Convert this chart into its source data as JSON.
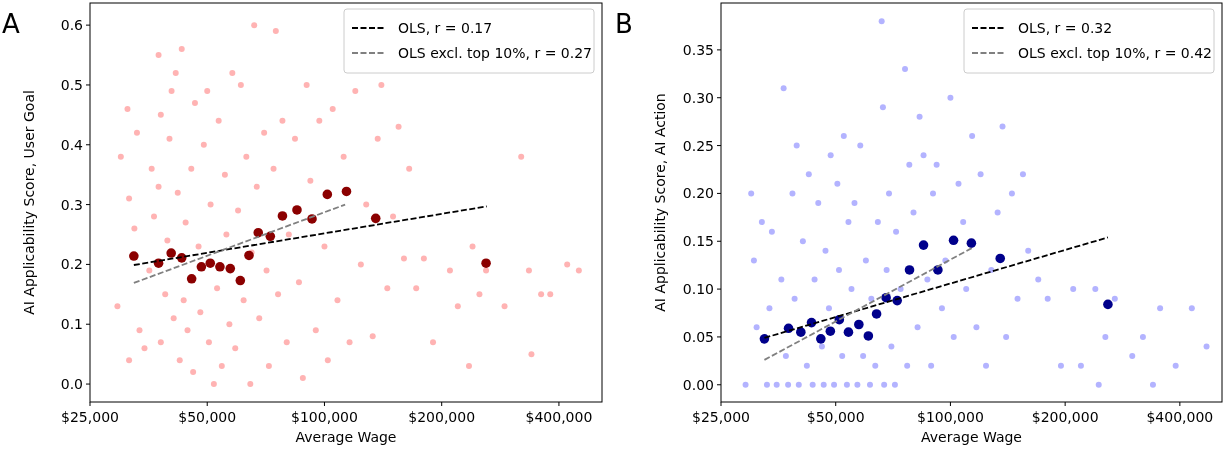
{
  "chart_data": [
    {
      "type": "scatter",
      "title": "A",
      "xlabel": "Average Wage",
      "ylabel": "AI Applicability Score, User Goal",
      "log": "x",
      "legend": "top right",
      "xlim": [
        25000,
        516000
      ],
      "ylim": [
        -0.03,
        0.637
      ],
      "xticks": [
        {
          "value": 25000,
          "label": "$25,000"
        },
        {
          "value": 50000,
          "label": "$50,000"
        },
        {
          "value": 100000,
          "label": "$100,000"
        },
        {
          "value": 200000,
          "label": "$200,000"
        },
        {
          "value": 400000,
          "label": "$400,000"
        }
      ],
      "yticks": [
        {
          "value": 0,
          "label": "0.0"
        },
        0.1,
        0.2,
        0.3,
        0.4,
        0.5,
        0.6
      ],
      "series": [
        {
          "color": "#ffb3b3",
          "marker": "circle",
          "x": [
            29400,
            30000,
            31200,
            31500,
            31500,
            32500,
            33000,
            33500,
            34500,
            35500,
            36000,
            36500,
            37500,
            37500,
            38000,
            38000,
            39000,
            39500,
            40000,
            40500,
            41000,
            41500,
            42000,
            42500,
            43000,
            43500,
            44000,
            44500,
            45500,
            46000,
            46500,
            47500,
            48000,
            49000,
            50000,
            50500,
            51000,
            52000,
            53000,
            53500,
            54500,
            55500,
            56000,
            57000,
            58000,
            59000,
            60000,
            61000,
            62000,
            63000,
            64500,
            65000,
            66000,
            67000,
            68000,
            70000,
            71000,
            72000,
            74000,
            75000,
            76000,
            78000,
            80000,
            81000,
            84000,
            86000,
            88000,
            90000,
            92000,
            95000,
            97000,
            100000,
            102000,
            105000,
            108000,
            112000,
            116000,
            120000,
            124000,
            128000,
            133000,
            137000,
            140000,
            145000,
            150000,
            155000,
            160000,
            165000,
            172000,
            180000,
            190000,
            210000,
            220000,
            235000,
            240000,
            250000,
            260000,
            290000,
            320000,
            335000,
            340000,
            360000,
            380000,
            420000,
            450000
          ],
          "values": [
            0.13,
            0.38,
            0.46,
            0.31,
            0.04,
            0.26,
            0.42,
            0.09,
            0.06,
            0.19,
            0.36,
            0.28,
            0.55,
            0.33,
            0.07,
            0.45,
            0.15,
            0.24,
            0.41,
            0.49,
            0.11,
            0.52,
            0.32,
            0.04,
            0.56,
            0.14,
            0.27,
            0.09,
            0.36,
            0.02,
            0.47,
            0.23,
            0.12,
            0.4,
            0.49,
            0.07,
            0.3,
            0.0,
            0.16,
            0.44,
            0.03,
            0.35,
            0.25,
            0.1,
            0.52,
            0.06,
            0.29,
            0.5,
            0.14,
            0.38,
            0.0,
            0.22,
            0.6,
            0.33,
            0.11,
            0.42,
            0.19,
            0.03,
            0.36,
            0.59,
            0.15,
            0.44,
            0.07,
            0.25,
            0.41,
            0.17,
            0.01,
            0.5,
            0.34,
            0.09,
            0.44,
            0.23,
            0.04,
            0.46,
            0.14,
            0.38,
            0.07,
            0.49,
            0.2,
            0.3,
            0.08,
            0.41,
            0.5,
            0.16,
            0.28,
            0.43,
            0.21,
            0.36,
            0.16,
            0.21,
            0.07,
            0.19,
            0.13,
            0.03,
            0.23,
            0.15,
            0.19,
            0.13,
            0.38,
            0.19,
            0.05,
            0.15,
            0.15,
            0.2,
            0.19
          ]
        },
        {
          "color": "#8b0000",
          "marker": "circle",
          "x": [
            32400,
            37500,
            40400,
            43000,
            45600,
            48300,
            50900,
            53900,
            57300,
            60800,
            64000,
            67600,
            72600,
            78000,
            85000,
            92900,
            101700,
            113900,
            135400,
            260000
          ],
          "values": [
            0.214,
            0.202,
            0.219,
            0.211,
            0.176,
            0.196,
            0.202,
            0.196,
            0.193,
            0.173,
            0.215,
            0.253,
            0.247,
            0.281,
            0.291,
            0.276,
            0.317,
            0.322,
            0.277,
            0.202
          ]
        },
        {
          "type": "line",
          "name": "OLS, r = 0.17",
          "color": "#000000",
          "line_style": "dashed",
          "marker": "none",
          "x": [
            32400,
            261000
          ],
          "values": [
            0.199,
            0.297
          ]
        },
        {
          "type": "line",
          "name": "OLS excl. top 10%, r = 0.27",
          "color": "#808080",
          "line_style": "dashed",
          "marker": "none",
          "x": [
            32400,
            113000
          ],
          "values": [
            0.169,
            0.3
          ]
        }
      ]
    },
    {
      "type": "scatter",
      "title": "B",
      "xlabel": "Average Wage",
      "ylabel": "AI Applicability Score, AI Action",
      "log": "x",
      "legend": "top right",
      "xlim": [
        25000,
        516000
      ],
      "ylim": [
        -0.018,
        0.399
      ],
      "xticks": [
        {
          "value": 25000,
          "label": "$25,000"
        },
        {
          "value": 50000,
          "label": "$50,000"
        },
        {
          "value": 100000,
          "label": "$100,000"
        },
        {
          "value": 200000,
          "label": "$200,000"
        },
        {
          "value": 400000,
          "label": "$400,000"
        }
      ],
      "yticks": [
        {
          "value": 0,
          "label": "0.00"
        },
        0.05,
        {
          "value": 0.1,
          "label": "0.10"
        },
        0.15,
        {
          "value": 0.2,
          "label": "0.20"
        },
        0.25,
        {
          "value": 0.3,
          "label": "0.30"
        },
        0.35
      ],
      "series": [
        {
          "color": "#b3b3ff",
          "marker": "circle",
          "x": [
            29000,
            30000,
            30500,
            31000,
            32000,
            33000,
            33500,
            34000,
            35000,
            36000,
            36500,
            37000,
            37500,
            38500,
            39000,
            39500,
            40000,
            41000,
            42000,
            42500,
            43500,
            44000,
            45000,
            46000,
            46500,
            47000,
            48000,
            48500,
            49500,
            50500,
            51000,
            52000,
            52500,
            53500,
            54000,
            55000,
            56000,
            57000,
            58000,
            59000,
            60000,
            61500,
            62000,
            63500,
            64500,
            66000,
            66500,
            67000,
            68000,
            69000,
            70000,
            71500,
            72000,
            74000,
            76000,
            77000,
            78000,
            80000,
            82000,
            83000,
            85000,
            87000,
            89000,
            90000,
            92000,
            95000,
            97000,
            100000,
            102000,
            105000,
            108000,
            110000,
            114000,
            117000,
            120000,
            124000,
            128000,
            133000,
            137000,
            140000,
            145000,
            150000,
            155000,
            160000,
            170000,
            180000,
            195000,
            210000,
            220000,
            240000,
            245000,
            255000,
            270000,
            300000,
            320000,
            340000,
            355000,
            390000,
            430000,
            470000
          ],
          "values": [
            0.0,
            0.2,
            0.13,
            0.06,
            0.17,
            0.0,
            0.08,
            0.16,
            0.0,
            0.11,
            0.31,
            0.03,
            0.0,
            0.2,
            0.09,
            0.25,
            0.0,
            0.15,
            0.02,
            0.22,
            0.0,
            0.11,
            0.19,
            0.04,
            0.0,
            0.14,
            0.08,
            0.24,
            0.0,
            0.21,
            0.12,
            0.03,
            0.26,
            0.0,
            0.17,
            0.1,
            0.19,
            0.0,
            0.25,
            0.03,
            0.13,
            0.0,
            0.09,
            0.02,
            0.17,
            0.38,
            0.29,
            0.0,
            0.12,
            0.2,
            0.04,
            0.0,
            0.16,
            0.1,
            0.33,
            0.02,
            0.23,
            0.18,
            0.06,
            0.28,
            0.24,
            0.11,
            0.02,
            0.2,
            0.23,
            0.08,
            0.13,
            0.3,
            0.05,
            0.21,
            0.17,
            0.1,
            0.26,
            0.06,
            0.22,
            0.02,
            0.12,
            0.18,
            0.27,
            0.05,
            0.2,
            0.09,
            0.22,
            0.14,
            0.11,
            0.09,
            0.02,
            0.1,
            0.02,
            0.1,
            0.0,
            0.05,
            0.09,
            0.03,
            0.05,
            0.0,
            0.08,
            0.02,
            0.08,
            0.04
          ]
        },
        {
          "color": "#00008b",
          "marker": "circle",
          "x": [
            32500,
            37600,
            40500,
            43200,
            45700,
            48400,
            51100,
            54000,
            57500,
            60900,
            64000,
            67800,
            72500,
            78100,
            85000,
            92700,
            101900,
            113500,
            135100,
            259000
          ],
          "values": [
            0.048,
            0.059,
            0.055,
            0.065,
            0.048,
            0.056,
            0.068,
            0.055,
            0.063,
            0.051,
            0.074,
            0.091,
            0.088,
            0.12,
            0.146,
            0.12,
            0.151,
            0.148,
            0.132,
            0.084
          ]
        },
        {
          "type": "line",
          "name": "OLS, r = 0.32",
          "color": "#000000",
          "line_style": "dashed",
          "marker": "none",
          "x": [
            32500,
            259000
          ],
          "values": [
            0.049,
            0.154
          ]
        },
        {
          "type": "line",
          "name": "OLS excl. top 10%, r = 0.42",
          "color": "#808080",
          "line_style": "dashed",
          "marker": "none",
          "x": [
            32500,
            114000
          ],
          "values": [
            0.026,
            0.143
          ]
        }
      ]
    }
  ]
}
